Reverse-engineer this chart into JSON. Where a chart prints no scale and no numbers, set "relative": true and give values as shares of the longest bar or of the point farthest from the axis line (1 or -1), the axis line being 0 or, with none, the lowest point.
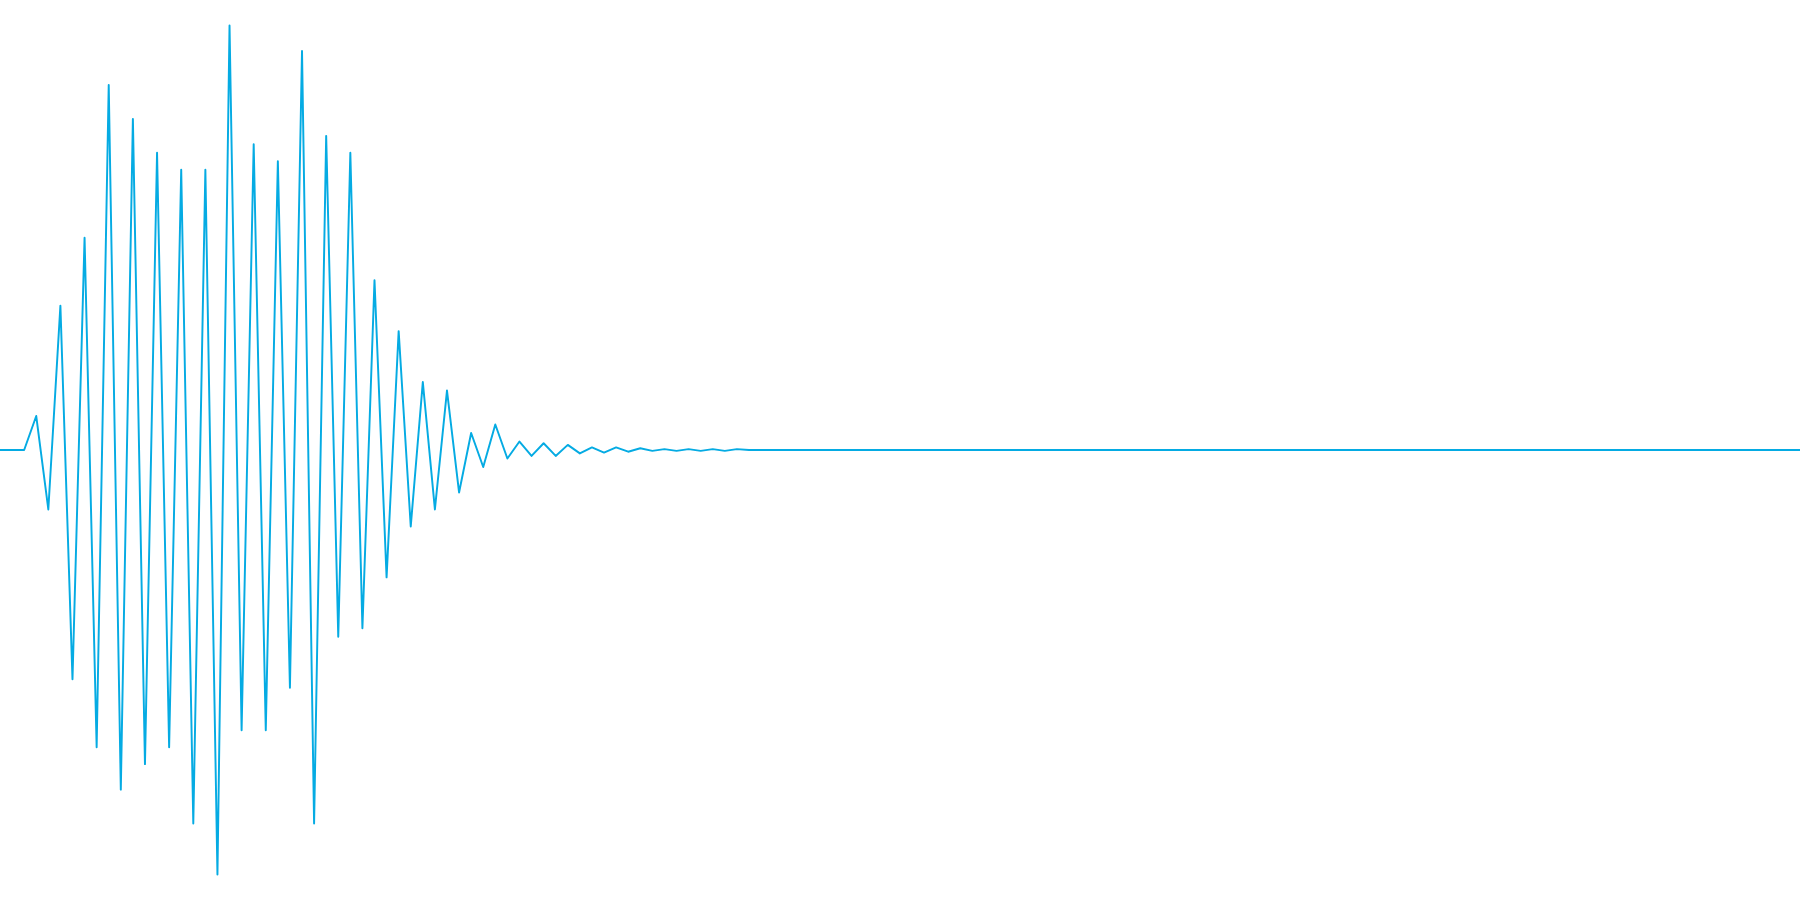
{
  "chart_data": {
    "type": "line",
    "relative": true,
    "line_style": "solid",
    "categories": [
      null,
      null,
      null,
      null,
      null,
      null,
      null,
      null,
      null,
      null,
      null,
      null,
      null,
      null,
      null,
      null,
      null,
      null,
      null,
      null,
      null,
      null,
      null,
      null,
      null,
      null,
      null,
      null,
      null,
      null,
      null,
      null,
      null,
      null,
      null,
      null,
      null,
      null,
      null,
      null,
      null,
      null,
      null,
      null,
      null,
      null,
      null,
      null,
      null,
      null,
      null,
      null,
      null,
      null,
      null,
      null,
      null,
      null,
      null,
      null,
      null,
      null,
      null,
      null,
      null,
      null,
      null,
      null,
      null,
      null,
      null,
      null,
      null,
      null,
      null,
      null,
      null,
      null,
      null,
      null,
      null,
      null,
      null,
      null,
      null,
      null,
      null,
      null,
      null,
      null,
      null,
      null,
      null,
      null,
      null,
      null,
      null,
      null,
      null,
      null,
      null,
      null,
      null,
      null,
      null,
      null,
      null,
      null,
      null,
      null,
      null,
      null,
      null,
      null,
      null,
      null,
      null,
      null,
      null,
      null,
      null,
      null,
      null,
      null,
      null,
      null,
      null,
      null,
      null,
      null,
      null,
      null,
      null,
      null,
      null,
      null,
      null,
      null,
      null,
      null,
      null,
      null,
      null,
      null,
      null,
      null,
      null,
      null,
      null,
      null
    ],
    "series": [
      {
        "color": "#05abe3",
        "values": [
          0.5,
          0.5,
          0.5,
          0.54,
          0.43,
          0.67,
          0.23,
          0.75,
          0.15,
          0.93,
          0.1,
          0.89,
          0.13,
          0.85,
          0.15,
          0.83,
          0.06,
          0.83,
          0,
          1,
          0.17,
          0.86,
          0.17,
          0.84,
          0.22,
          0.97,
          0.06,
          0.87,
          0.28,
          0.85,
          0.29,
          0.7,
          0.35,
          0.64,
          0.41,
          0.58,
          0.43,
          0.57,
          0.45,
          0.52,
          0.48,
          0.53,
          0.49,
          0.51,
          0.493,
          0.508,
          0.493,
          0.506,
          0.496,
          0.503,
          0.497,
          0.503,
          0.498,
          0.502,
          0.499,
          0.501,
          0.499,
          0.501,
          0.499,
          0.501,
          0.499,
          0.501,
          0.5,
          0.5,
          0.5,
          0.5,
          0.5,
          0.5,
          0.5,
          0.5,
          0.5,
          0.5,
          0.5,
          0.5,
          0.5,
          0.5,
          0.5,
          0.5,
          0.5,
          0.5,
          0.5,
          0.5,
          0.5,
          0.5,
          0.5,
          0.5,
          0.5,
          0.5,
          0.5,
          0.5,
          0.5,
          0.5,
          0.5,
          0.5,
          0.5,
          0.5,
          0.5,
          0.5,
          0.5,
          0.5,
          0.5,
          0.5,
          0.5,
          0.5,
          0.5,
          0.5,
          0.5,
          0.5,
          0.5,
          0.5,
          0.5,
          0.5,
          0.5,
          0.5,
          0.5,
          0.5,
          0.5,
          0.5,
          0.5,
          0.5,
          0.5,
          0.5,
          0.5,
          0.5,
          0.5,
          0.5,
          0.5,
          0.5,
          0.5,
          0.5,
          0.5,
          0.5,
          0.5,
          0.5,
          0.5,
          0.5,
          0.5,
          0.5,
          0.5,
          0.5,
          0.5,
          0.5,
          0.5,
          0.5,
          0.5,
          0.5,
          0.5,
          0.5,
          0.5,
          0.5
        ]
      }
    ]
  }
}
